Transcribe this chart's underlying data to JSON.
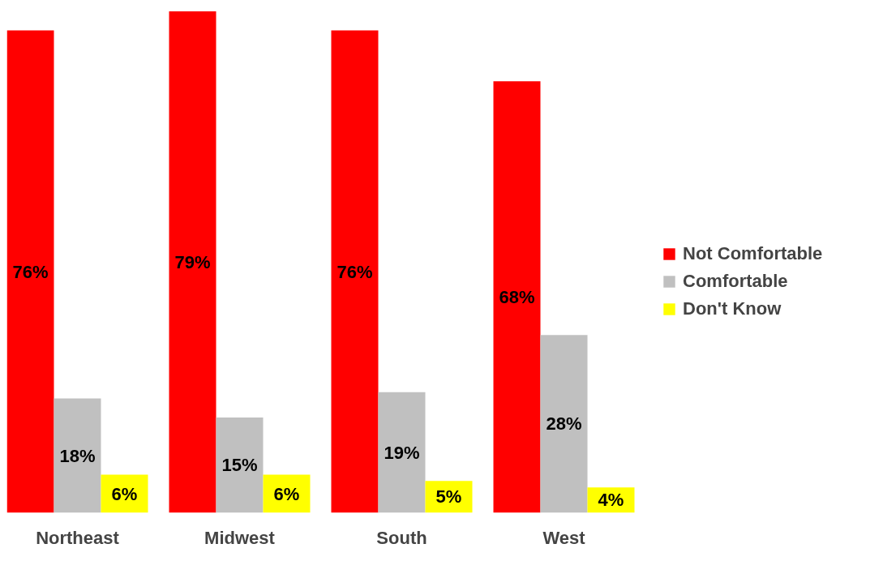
{
  "chart_data": {
    "type": "bar",
    "categories": [
      "Northeast",
      "Midwest",
      "South",
      "West"
    ],
    "series": [
      {
        "name": "Not Comfortable",
        "color": "#ff0000",
        "values": [
          76,
          79,
          76,
          68
        ],
        "value_labels": [
          "76%",
          "79%",
          "76%",
          "68%"
        ]
      },
      {
        "name": "Comfortable",
        "color": "#c0c0c0",
        "values": [
          18,
          15,
          19,
          28
        ],
        "value_labels": [
          "18%",
          "15%",
          "19%",
          "28%"
        ]
      },
      {
        "name": "Don't Know",
        "color": "#ffff00",
        "values": [
          6,
          6,
          5,
          4
        ],
        "value_labels": [
          "6%",
          "6%",
          "5%",
          "4%"
        ]
      }
    ],
    "legend": "right"
  }
}
